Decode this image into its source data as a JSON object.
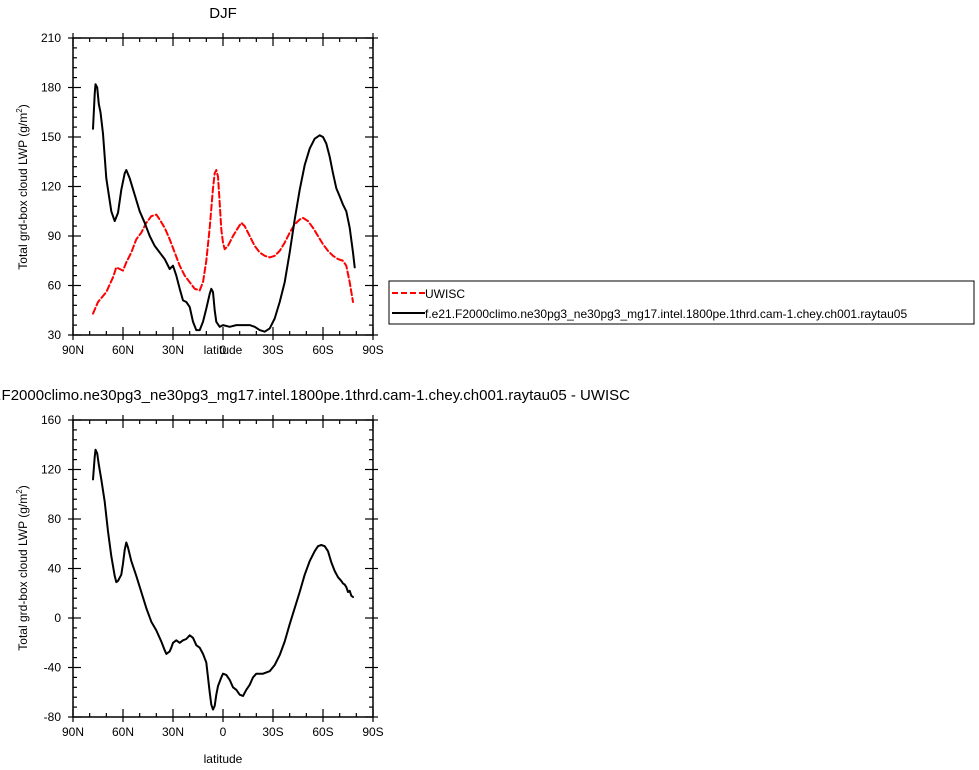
{
  "chart_data": [
    {
      "type": "line",
      "title": "DJF",
      "xlabel": "latitude",
      "ylabel_main": "Total grd-box cloud LWP (g/m",
      "ylabel_sup": "2",
      "ylabel_close": ")",
      "xlim": [
        90,
        -90
      ],
      "ylim": [
        30,
        210
      ],
      "grid": false,
      "x_ticks": [
        90,
        60,
        30,
        0,
        -30,
        -60,
        -90
      ],
      "x_tick_labels": [
        "90N",
        "60N",
        "30N",
        "0",
        "30S",
        "60S",
        "90S"
      ],
      "y_ticks": [
        30,
        60,
        90,
        120,
        150,
        180,
        210
      ],
      "y_tick_labels": [
        "30",
        "60",
        "90",
        "120",
        "150",
        "180",
        "210"
      ],
      "legend_placement": "right",
      "series": [
        {
          "name": "UWISC",
          "color": "#ff0000",
          "dash": true,
          "points": [
            [
              78,
              43
            ],
            [
              75,
              50
            ],
            [
              70,
              56
            ],
            [
              66,
              65
            ],
            [
              64,
              71
            ],
            [
              62,
              70
            ],
            [
              60,
              69
            ],
            [
              58,
              74
            ],
            [
              55,
              80
            ],
            [
              52,
              88
            ],
            [
              49,
              92
            ],
            [
              46,
              98
            ],
            [
              43,
              102
            ],
            [
              40,
              103
            ],
            [
              38,
              100
            ],
            [
              35,
              95
            ],
            [
              32,
              88
            ],
            [
              29,
              80
            ],
            [
              26,
              72
            ],
            [
              23,
              66
            ],
            [
              20,
              62
            ],
            [
              17,
              58
            ],
            [
              14,
              57
            ],
            [
              12,
              62
            ],
            [
              10,
              75
            ],
            [
              8,
              95
            ],
            [
              6,
              119
            ],
            [
              5,
              128
            ],
            [
              4,
              130
            ],
            [
              3,
              126
            ],
            [
              2,
              110
            ],
            [
              1,
              94
            ],
            [
              0,
              86
            ],
            [
              -1,
              82
            ],
            [
              -3,
              84
            ],
            [
              -6,
              90
            ],
            [
              -9,
              95
            ],
            [
              -11,
              98
            ],
            [
              -13,
              96
            ],
            [
              -16,
              90
            ],
            [
              -19,
              84
            ],
            [
              -22,
              80
            ],
            [
              -25,
              78
            ],
            [
              -28,
              77
            ],
            [
              -31,
              78
            ],
            [
              -34,
              81
            ],
            [
              -37,
              86
            ],
            [
              -40,
              92
            ],
            [
              -43,
              97
            ],
            [
              -46,
              100
            ],
            [
              -48,
              101
            ],
            [
              -51,
              99
            ],
            [
              -54,
              95
            ],
            [
              -57,
              90
            ],
            [
              -60,
              85
            ],
            [
              -63,
              81
            ],
            [
              -66,
              78
            ],
            [
              -69,
              76
            ],
            [
              -72,
              75
            ],
            [
              -74,
              72
            ],
            [
              -76,
              62
            ],
            [
              -78,
              50
            ]
          ]
        },
        {
          "name": "f.e21.F2000climo.ne30pg3_ne30pg3_mg17.intel.1800pe.1thrd.cam-1.chey.ch001.raytau05",
          "color": "#000000",
          "dash": false,
          "points": [
            [
              78,
              155
            ],
            [
              77,
              176
            ],
            [
              76.5,
              182
            ],
            [
              75.5,
              180
            ],
            [
              74.5,
              170
            ],
            [
              73.5,
              165
            ],
            [
              72,
              152
            ],
            [
              70,
              125
            ],
            [
              67,
              105
            ],
            [
              65,
              99
            ],
            [
              63,
              104
            ],
            [
              61,
              118
            ],
            [
              59,
              128
            ],
            [
              58,
              130
            ],
            [
              56,
              125
            ],
            [
              53,
              115
            ],
            [
              50,
              105
            ],
            [
              47,
              98
            ],
            [
              44,
              90
            ],
            [
              41,
              84
            ],
            [
              38,
              80
            ],
            [
              35,
              76
            ],
            [
              32,
              70
            ],
            [
              30,
              72
            ],
            [
              28,
              66
            ],
            [
              26,
              58
            ],
            [
              24,
              51
            ],
            [
              22,
              50
            ],
            [
              20,
              47
            ],
            [
              18,
              38
            ],
            [
              16,
              33
            ],
            [
              14,
              33
            ],
            [
              12,
              38
            ],
            [
              10,
              46
            ],
            [
              8,
              55
            ],
            [
              7,
              58
            ],
            [
              6,
              56
            ],
            [
              5,
              45
            ],
            [
              4,
              38
            ],
            [
              2,
              35
            ],
            [
              0,
              36
            ],
            [
              -4,
              35
            ],
            [
              -8,
              36
            ],
            [
              -12,
              36
            ],
            [
              -16,
              36
            ],
            [
              -19,
              35
            ],
            [
              -22,
              33
            ],
            [
              -25,
              32
            ],
            [
              -28,
              34
            ],
            [
              -31,
              40
            ],
            [
              -34,
              50
            ],
            [
              -37,
              62
            ],
            [
              -40,
              80
            ],
            [
              -43,
              100
            ],
            [
              -46,
              118
            ],
            [
              -49,
              133
            ],
            [
              -52,
              143
            ],
            [
              -55,
              149
            ],
            [
              -58,
              151
            ],
            [
              -60,
              150
            ],
            [
              -62,
              146
            ],
            [
              -64,
              138
            ],
            [
              -66,
              128
            ],
            [
              -68,
              119
            ],
            [
              -70,
              114
            ],
            [
              -72,
              109
            ],
            [
              -74,
              105
            ],
            [
              -76,
              95
            ],
            [
              -78,
              80
            ],
            [
              -79,
              71
            ]
          ]
        }
      ]
    },
    {
      "type": "line",
      "title": "f.e21.F2000climo.ne30pg3_ne30pg3_mg17.intel.1800pe.1thrd.cam-1.chey.ch001.raytau05 - UWISC",
      "xlabel": "latitude",
      "ylabel_main": "Total grd-box cloud LWP (g/m",
      "ylabel_sup": "2",
      "ylabel_close": ")",
      "xlim": [
        90,
        -90
      ],
      "ylim": [
        -80,
        160
      ],
      "grid": false,
      "x_ticks": [
        90,
        60,
        30,
        0,
        -30,
        -60,
        -90
      ],
      "x_tick_labels": [
        "90N",
        "60N",
        "30N",
        "0",
        "30S",
        "60S",
        "90S"
      ],
      "y_ticks": [
        -80,
        -40,
        0,
        40,
        80,
        120,
        160
      ],
      "y_tick_labels": [
        "-80",
        "-40",
        "0",
        "40",
        "80",
        "120",
        "160"
      ],
      "series": [
        {
          "color": "#000000",
          "dash": false,
          "points": [
            [
              78,
              112
            ],
            [
              77,
              130
            ],
            [
              76.5,
              136
            ],
            [
              75.5,
              133
            ],
            [
              74.5,
              124
            ],
            [
              73,
              112
            ],
            [
              71,
              94
            ],
            [
              69,
              70
            ],
            [
              67,
              50
            ],
            [
              65,
              34
            ],
            [
              64,
              29
            ],
            [
              63,
              30
            ],
            [
              61,
              35
            ],
            [
              60,
              44
            ],
            [
              59,
              55
            ],
            [
              58,
              61
            ],
            [
              57,
              57
            ],
            [
              55,
              46
            ],
            [
              52,
              34
            ],
            [
              49,
              21
            ],
            [
              46,
              8
            ],
            [
              43,
              -3
            ],
            [
              40,
              -10
            ],
            [
              37,
              -19
            ],
            [
              35,
              -26
            ],
            [
              34,
              -29
            ],
            [
              32,
              -27
            ],
            [
              31,
              -24
            ],
            [
              30,
              -20
            ],
            [
              28,
              -18
            ],
            [
              26,
              -20
            ],
            [
              24,
              -18
            ],
            [
              22,
              -17
            ],
            [
              20,
              -14
            ],
            [
              18,
              -16
            ],
            [
              16,
              -22
            ],
            [
              14,
              -24
            ],
            [
              12,
              -29
            ],
            [
              10,
              -36
            ],
            [
              9,
              -48
            ],
            [
              8,
              -60
            ],
            [
              7,
              -70
            ],
            [
              6,
              -74
            ],
            [
              5,
              -71
            ],
            [
              4,
              -62
            ],
            [
              3,
              -55
            ],
            [
              1,
              -48
            ],
            [
              0,
              -45
            ],
            [
              -2,
              -46
            ],
            [
              -4,
              -50
            ],
            [
              -6,
              -56
            ],
            [
              -8,
              -58
            ],
            [
              -10,
              -62
            ],
            [
              -12,
              -63
            ],
            [
              -14,
              -58
            ],
            [
              -16,
              -54
            ],
            [
              -18,
              -48
            ],
            [
              -20,
              -45
            ],
            [
              -24,
              -45
            ],
            [
              -28,
              -43
            ],
            [
              -31,
              -38
            ],
            [
              -34,
              -30
            ],
            [
              -37,
              -19
            ],
            [
              -40,
              -5
            ],
            [
              -43,
              8
            ],
            [
              -46,
              21
            ],
            [
              -49,
              35
            ],
            [
              -52,
              46
            ],
            [
              -55,
              54
            ],
            [
              -57,
              58
            ],
            [
              -59,
              59
            ],
            [
              -61,
              58
            ],
            [
              -63,
              54
            ],
            [
              -65,
              45
            ],
            [
              -67,
              38
            ],
            [
              -69,
              33
            ],
            [
              -71,
              30
            ],
            [
              -72,
              28
            ],
            [
              -73,
              27
            ],
            [
              -74,
              25
            ],
            [
              -75,
              21
            ],
            [
              -76,
              22
            ],
            [
              -77,
              18
            ],
            [
              -78,
              17
            ]
          ]
        }
      ]
    }
  ]
}
